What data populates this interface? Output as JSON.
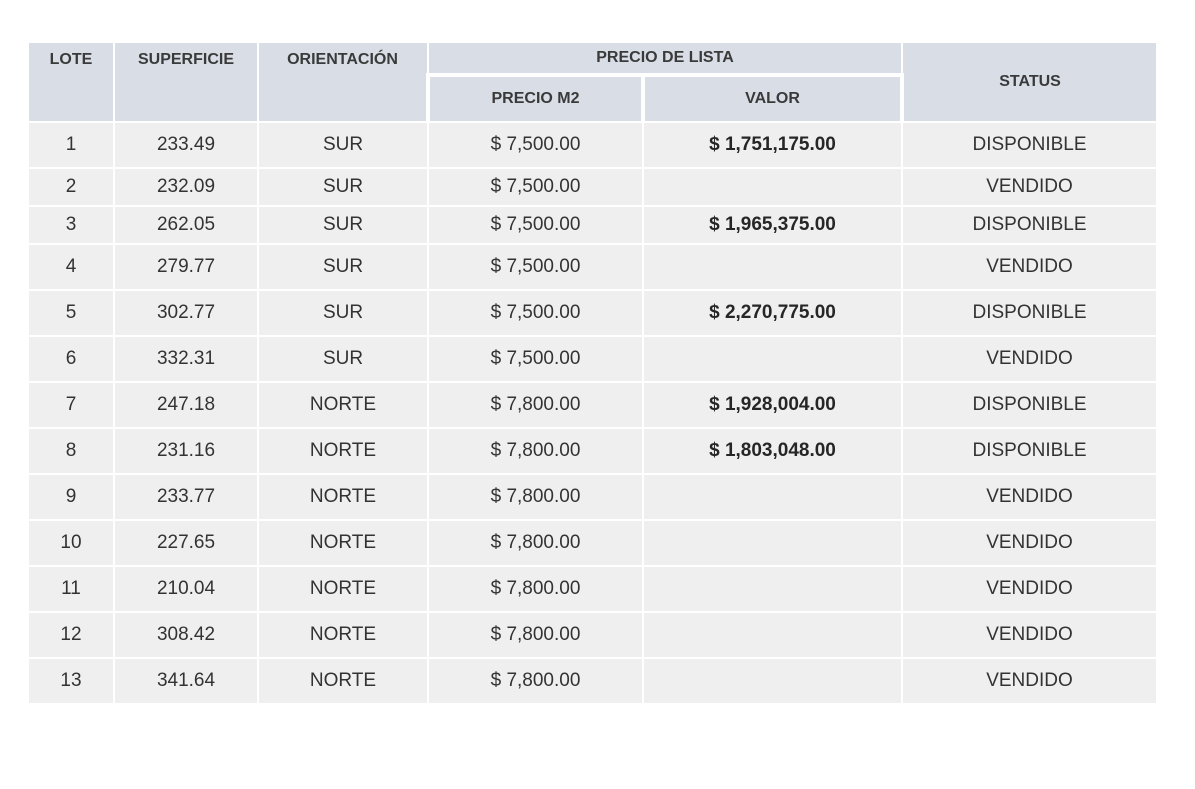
{
  "table": {
    "headers": {
      "lote": "LOTE",
      "superficie": "SUPERFICIE",
      "orientacion": "ORIENTACIÓN",
      "precio_de_lista": "PRECIO DE LISTA",
      "precio_m2": "PRECIO M2",
      "valor": "VALOR",
      "status": "STATUS"
    },
    "status_colors": {
      "DISPONIBLE": "#4d8b31",
      "VENDIDO": "#b3141b"
    },
    "rows": [
      {
        "lote": "1",
        "superficie": "233.49",
        "orientacion": "SUR",
        "precio_m2": "$ 7,500.00",
        "valor": "$ 1,751,175.00",
        "status": "DISPONIBLE"
      },
      {
        "lote": "2",
        "superficie": "232.09",
        "orientacion": "SUR",
        "precio_m2": "$ 7,500.00",
        "valor": "",
        "status": "VENDIDO"
      },
      {
        "lote": "3",
        "superficie": "262.05",
        "orientacion": "SUR",
        "precio_m2": "$ 7,500.00",
        "valor": "$ 1,965,375.00",
        "status": "DISPONIBLE"
      },
      {
        "lote": "4",
        "superficie": "279.77",
        "orientacion": "SUR",
        "precio_m2": "$ 7,500.00",
        "valor": "",
        "status": "VENDIDO"
      },
      {
        "lote": "5",
        "superficie": "302.77",
        "orientacion": "SUR",
        "precio_m2": "$ 7,500.00",
        "valor": "$ 2,270,775.00",
        "status": "DISPONIBLE"
      },
      {
        "lote": "6",
        "superficie": "332.31",
        "orientacion": "SUR",
        "precio_m2": "$ 7,500.00",
        "valor": "",
        "status": "VENDIDO"
      },
      {
        "lote": "7",
        "superficie": "247.18",
        "orientacion": "NORTE",
        "precio_m2": "$ 7,800.00",
        "valor": "$ 1,928,004.00",
        "status": "DISPONIBLE"
      },
      {
        "lote": "8",
        "superficie": "231.16",
        "orientacion": "NORTE",
        "precio_m2": "$ 7,800.00",
        "valor": "$ 1,803,048.00",
        "status": "DISPONIBLE"
      },
      {
        "lote": "9",
        "superficie": "233.77",
        "orientacion": "NORTE",
        "precio_m2": "$ 7,800.00",
        "valor": "",
        "status": "VENDIDO"
      },
      {
        "lote": "10",
        "superficie": "227.65",
        "orientacion": "NORTE",
        "precio_m2": "$ 7,800.00",
        "valor": "",
        "status": "VENDIDO"
      },
      {
        "lote": "11",
        "superficie": "210.04",
        "orientacion": "NORTE",
        "precio_m2": "$ 7,800.00",
        "valor": "",
        "status": "VENDIDO"
      },
      {
        "lote": "12",
        "superficie": "308.42",
        "orientacion": "NORTE",
        "precio_m2": "$ 7,800.00",
        "valor": "",
        "status": "VENDIDO"
      },
      {
        "lote": "13",
        "superficie": "341.64",
        "orientacion": "NORTE",
        "precio_m2": "$ 7,800.00",
        "valor": "",
        "status": "VENDIDO"
      }
    ]
  }
}
